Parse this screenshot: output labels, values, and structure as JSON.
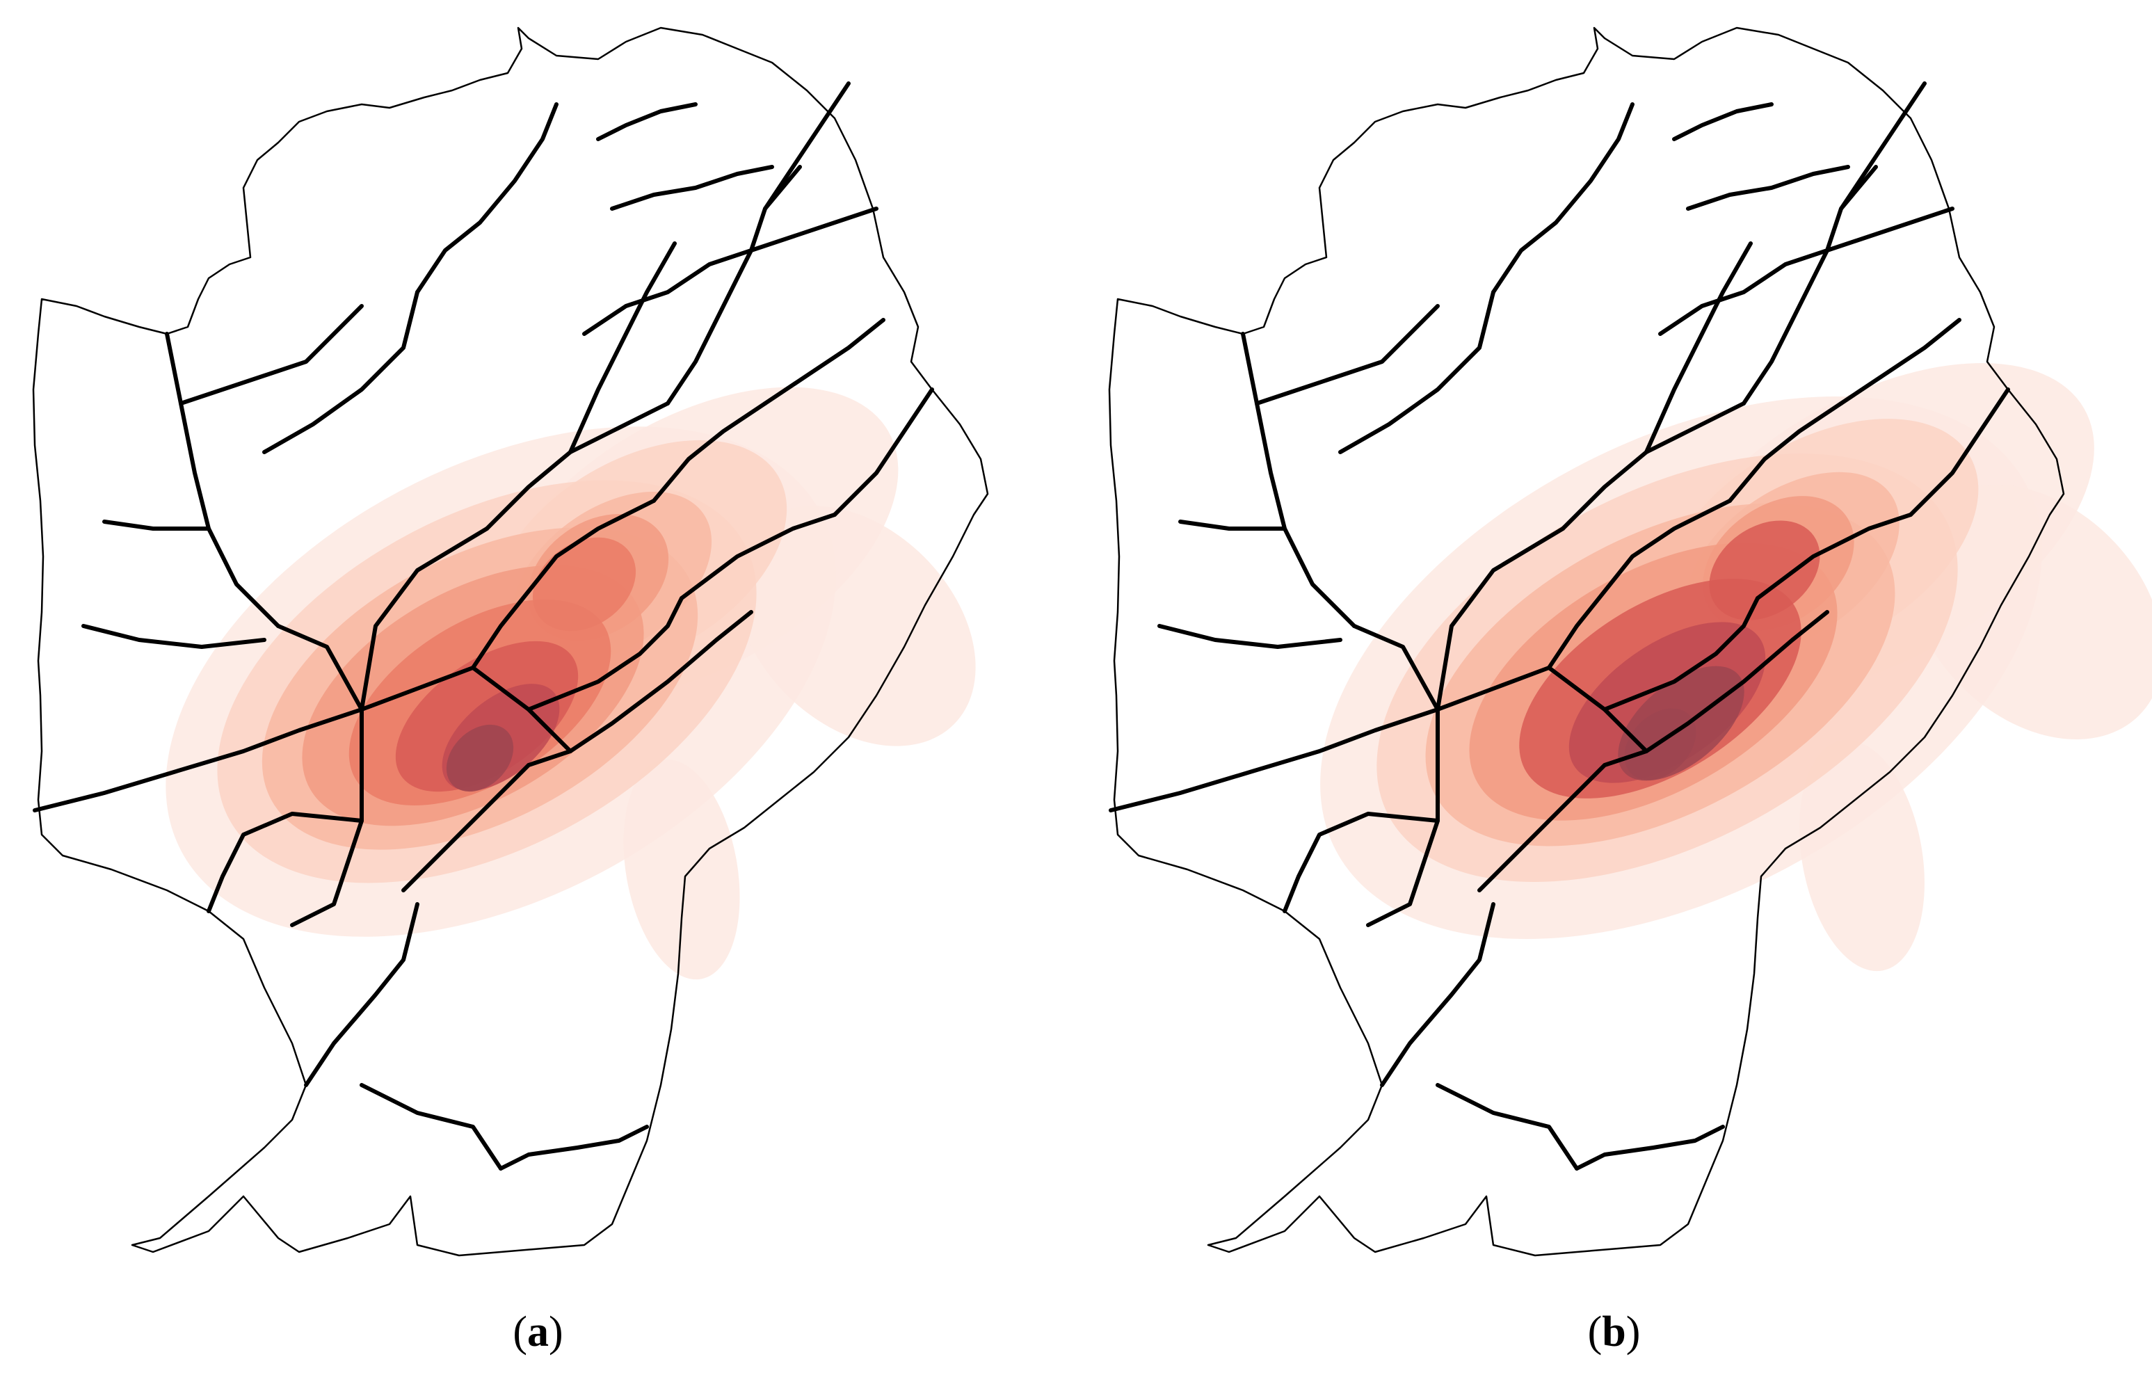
{
  "panels": [
    {
      "id": "a",
      "caption": "a",
      "heat_shift": 0
    },
    {
      "id": "b",
      "caption": "b",
      "heat_shift": 1
    }
  ],
  "colors": {
    "heat_ramp": [
      "#fde9e2",
      "#fbd3c4",
      "#f8b8a2",
      "#f29b82",
      "#ea7b66",
      "#d85a55",
      "#c04a52",
      "#9e4550"
    ],
    "boundary": "#000000",
    "background": "#ffffff"
  },
  "icons": {
    "map": "district-boundaries-map",
    "overlay": "density-heatmap"
  }
}
